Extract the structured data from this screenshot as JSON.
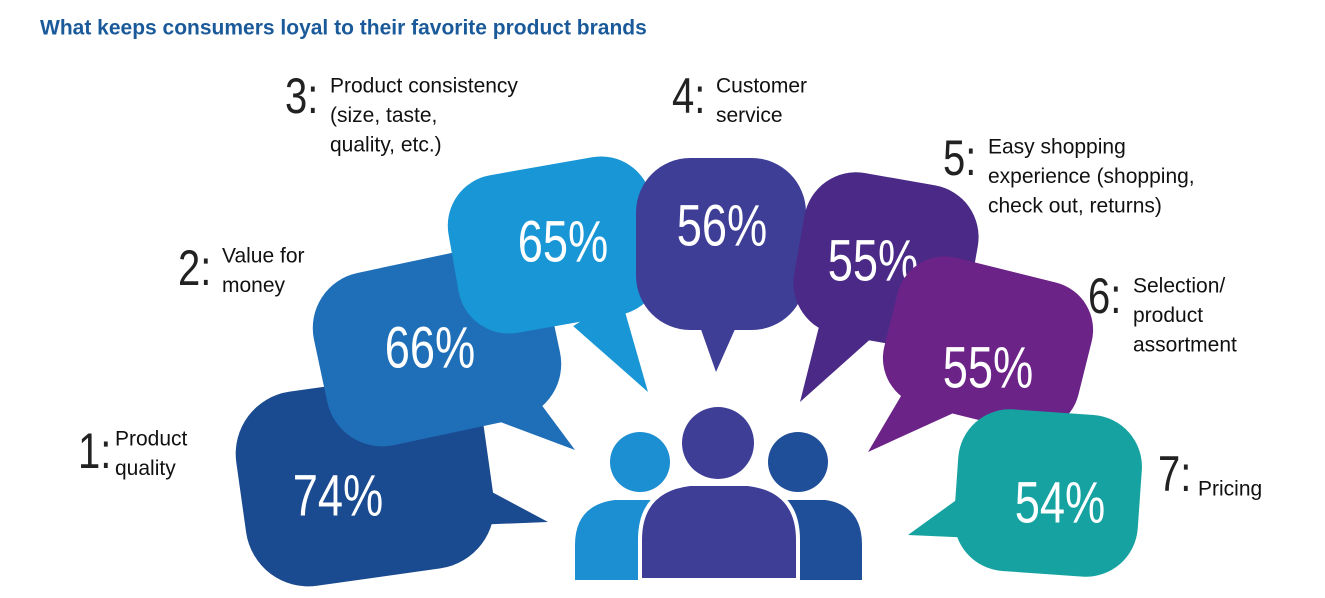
{
  "title": "What keeps consumers loyal to their favorite product brands",
  "items": [
    {
      "rank": "1:",
      "label_lines": [
        "Product",
        "quality"
      ],
      "value": "74%"
    },
    {
      "rank": "2:",
      "label_lines": [
        "Value for",
        "money"
      ],
      "value": "66%"
    },
    {
      "rank": "3:",
      "label_lines": [
        "Product consistency",
        "(size, taste,",
        "quality, etc.)"
      ],
      "value": "65%"
    },
    {
      "rank": "4:",
      "label_lines": [
        "Customer",
        "service"
      ],
      "value": "56%"
    },
    {
      "rank": "5:",
      "label_lines": [
        "Easy shopping",
        "experience (shopping,",
        "check out, returns)"
      ],
      "value": "55%"
    },
    {
      "rank": "6:",
      "label_lines": [
        "Selection/",
        "product",
        "assortment"
      ],
      "value": "55%"
    },
    {
      "rank": "7:",
      "label_lines": [
        "Pricing"
      ],
      "value": "54%"
    }
  ]
}
